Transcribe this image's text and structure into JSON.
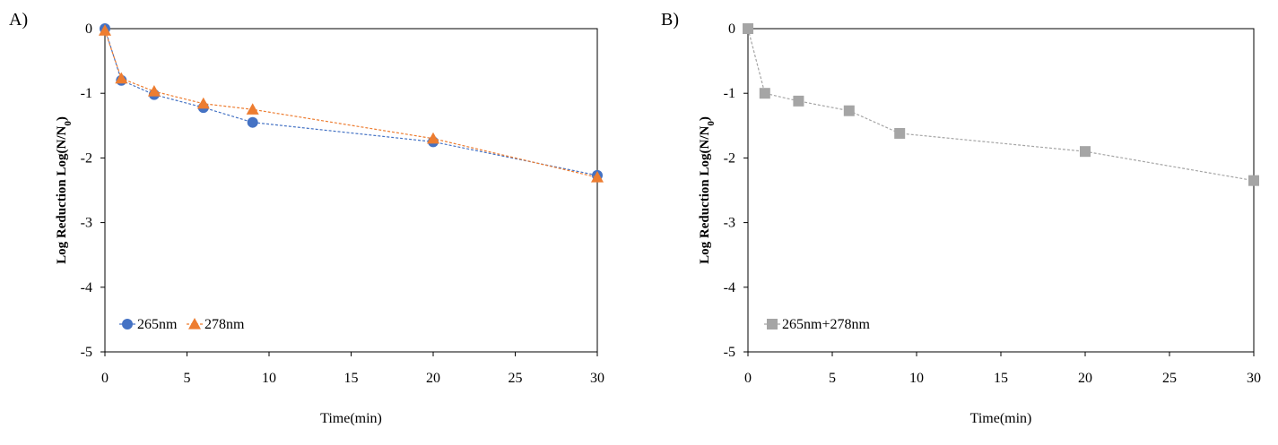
{
  "chart_data": [
    {
      "panel_label": "A)",
      "type": "line",
      "xlabel": "Time(min)",
      "ylabel": "Log Reduction Log(N/N",
      "ylabel_sub": "0",
      "ylabel_end": ")",
      "xlim": [
        0,
        30
      ],
      "ylim": [
        -5,
        0
      ],
      "xticks": [
        0,
        5,
        10,
        15,
        20,
        25,
        30
      ],
      "yticks": [
        0,
        -1,
        -2,
        -3,
        -4,
        -5
      ],
      "grid": false,
      "legend_position": "bottom-left",
      "series": [
        {
          "name": "265nm",
          "marker": "circle",
          "color": "#4472C4",
          "x": [
            0,
            1,
            3,
            6,
            9,
            20,
            30
          ],
          "y": [
            0,
            -0.8,
            -1.02,
            -1.22,
            -1.45,
            -1.75,
            -2.27
          ]
        },
        {
          "name": "278nm",
          "marker": "triangle",
          "color": "#ED7D31",
          "x": [
            0,
            1,
            3,
            6,
            9,
            20,
            30
          ],
          "y": [
            -0.03,
            -0.77,
            -0.97,
            -1.16,
            -1.25,
            -1.7,
            -2.3
          ]
        }
      ]
    },
    {
      "panel_label": "B)",
      "type": "line",
      "xlabel": "Time(min)",
      "ylabel": "Log Reduction Log(N/N",
      "ylabel_sub": "0",
      "ylabel_end": ")",
      "xlim": [
        0,
        30
      ],
      "ylim": [
        -5,
        0
      ],
      "xticks": [
        0,
        5,
        10,
        15,
        20,
        25,
        30
      ],
      "yticks": [
        0,
        -1,
        -2,
        -3,
        -4,
        -5
      ],
      "grid": false,
      "legend_position": "bottom-left",
      "series": [
        {
          "name": "265nm+278nm",
          "marker": "square",
          "color": "#A5A5A5",
          "x": [
            0,
            1,
            3,
            6,
            9,
            20,
            30
          ],
          "y": [
            0,
            -1.0,
            -1.12,
            -1.27,
            -1.62,
            -1.9,
            -2.35
          ]
        }
      ]
    }
  ]
}
